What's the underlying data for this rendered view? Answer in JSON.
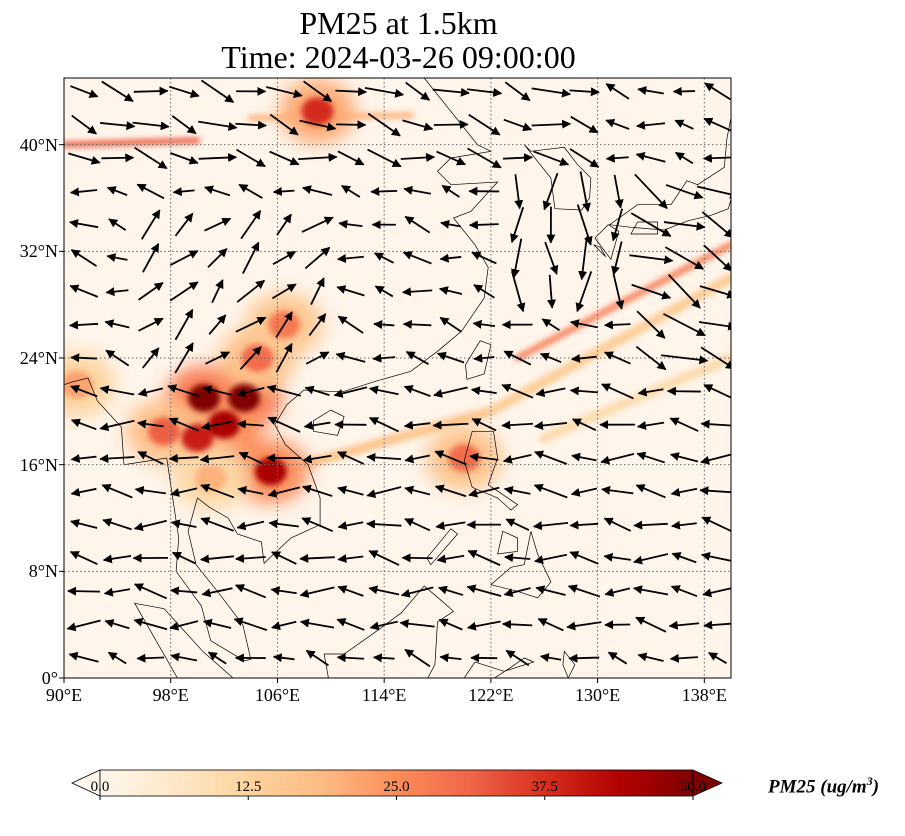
{
  "header": {
    "title_line1": "PM25 at 1.5km",
    "title_line2": "Time: 2024-03-26 09:00:00"
  },
  "map": {
    "projection": "PlateCarree",
    "extent": {
      "lon_min": 90,
      "lon_max": 140,
      "lat_min": 0,
      "lat_max": 45
    },
    "lat_ticks": [
      {
        "value": 0,
        "label": "0°"
      },
      {
        "value": 8,
        "label": "8°N"
      },
      {
        "value": 16,
        "label": "16°N"
      },
      {
        "value": 24,
        "label": "24°N"
      },
      {
        "value": 32,
        "label": "32°N"
      },
      {
        "value": 40,
        "label": "40°N"
      }
    ],
    "lon_ticks": [
      {
        "value": 90,
        "label": "90°E"
      },
      {
        "value": 98,
        "label": "98°E"
      },
      {
        "value": 106,
        "label": "106°E"
      },
      {
        "value": 114,
        "label": "114°E"
      },
      {
        "value": 122,
        "label": "122°E"
      },
      {
        "value": 130,
        "label": "130°E"
      },
      {
        "value": 138,
        "label": "138°E"
      }
    ],
    "gridlines": "dotted",
    "background_color": "#fff5eb",
    "coastline_color": "#000000"
  },
  "field": {
    "variable": "PM25",
    "hotspots": [
      {
        "lon": 100.5,
        "lat": 21.0,
        "value": 50
      },
      {
        "lon": 103.5,
        "lat": 21.0,
        "value": 50
      },
      {
        "lon": 102.0,
        "lat": 19.0,
        "value": 45
      },
      {
        "lon": 100.0,
        "lat": 18.0,
        "value": 40
      },
      {
        "lon": 105.5,
        "lat": 15.5,
        "value": 45
      },
      {
        "lon": 97.5,
        "lat": 18.5,
        "value": 32
      },
      {
        "lon": 104.5,
        "lat": 24.0,
        "value": 30
      },
      {
        "lon": 106.5,
        "lat": 26.5,
        "value": 28
      },
      {
        "lon": 109.0,
        "lat": 42.5,
        "value": 38
      },
      {
        "lon": 120.0,
        "lat": 16.5,
        "value": 30
      },
      {
        "lon": 91.0,
        "lat": 22.0,
        "value": 22
      },
      {
        "lon": 101.0,
        "lat": 15.0,
        "value": 20
      }
    ],
    "bands": [
      {
        "from": [
          90,
          40.0
        ],
        "to": [
          100,
          40.3
        ],
        "value": 32
      },
      {
        "from": [
          124,
          24.0
        ],
        "to": [
          140,
          32.5
        ],
        "value": 28
      },
      {
        "from": [
          104,
          42.0
        ],
        "to": [
          116,
          42.2
        ],
        "value": 20
      },
      {
        "from": [
          108,
          16.0
        ],
        "to": [
          122,
          20.0
        ],
        "value": 16
      },
      {
        "from": [
          122,
          20.0
        ],
        "to": [
          140,
          30.0
        ],
        "value": 14
      },
      {
        "from": [
          126,
          18.0
        ],
        "to": [
          140,
          24.0
        ],
        "value": 10
      }
    ]
  },
  "wind_vectors": {
    "spacing_deg": 2.5,
    "regions": [
      {
        "name": "north_westerly",
        "lat_min": 37,
        "lat_max": 45,
        "lon_min": 90,
        "lon_max": 130,
        "u": 1.0,
        "v": -0.3,
        "speed": 1.0
      },
      {
        "name": "south_china_sw",
        "lat_min": 22,
        "lat_max": 36,
        "lon_min": 96,
        "lon_max": 110,
        "u": 0.6,
        "v": 0.6,
        "speed": 0.8
      },
      {
        "name": "east_sea_south",
        "lat_min": 28,
        "lat_max": 38,
        "lon_min": 124,
        "lon_max": 132,
        "u": 0.0,
        "v": -1.0,
        "speed": 1.2
      },
      {
        "name": "japan_jet",
        "lat_min": 24,
        "lat_max": 38,
        "lon_min": 132,
        "lon_max": 140,
        "u": 1.0,
        "v": -0.5,
        "speed": 1.4
      },
      {
        "name": "trade_winds",
        "lat_min": 4,
        "lat_max": 22,
        "lon_min": 90,
        "lon_max": 140,
        "u": -1.0,
        "v": 0.1,
        "speed": 0.8
      }
    ]
  },
  "colorbar": {
    "cmap": "OrRd",
    "vmin": 0.0,
    "vmax": 50.0,
    "stops": [
      "#fff7ec",
      "#fee8c8",
      "#fdd49e",
      "#fdbb84",
      "#fc8d59",
      "#ef6548",
      "#d7301f",
      "#b30000",
      "#7f0000"
    ],
    "ticks": [
      "0.0",
      "12.5",
      "25.0",
      "37.5",
      "50.0"
    ],
    "extend": "both",
    "label_main": "PM25 (ug/m",
    "label_sup": "3",
    "label_end": ")"
  }
}
